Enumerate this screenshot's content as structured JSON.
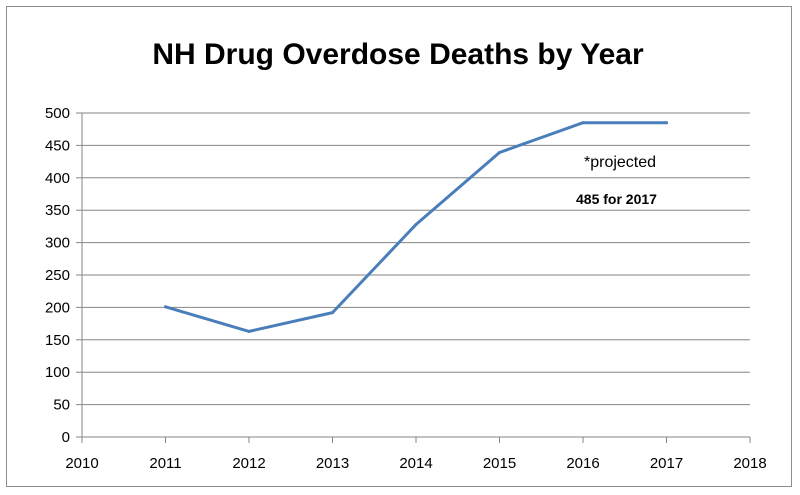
{
  "chart_data": {
    "type": "line",
    "title": "NH Drug Overdose Deaths by Year",
    "xlabel": "",
    "ylabel": "",
    "x_ticks": [
      2010,
      2011,
      2012,
      2013,
      2014,
      2015,
      2016,
      2017,
      2018
    ],
    "y_ticks": [
      0,
      50,
      100,
      150,
      200,
      250,
      300,
      350,
      400,
      450,
      500
    ],
    "xlim": [
      2010,
      2018
    ],
    "ylim": [
      0,
      500
    ],
    "grid": "horizontal",
    "series": [
      {
        "color": "#4a7ebb",
        "x": [
          2011,
          2012,
          2013,
          2014,
          2015,
          2016,
          2017
        ],
        "y": [
          201,
          163,
          192,
          328,
          439,
          485,
          485
        ]
      }
    ],
    "annotations": [
      "*projected",
      "485 for 2017"
    ]
  }
}
